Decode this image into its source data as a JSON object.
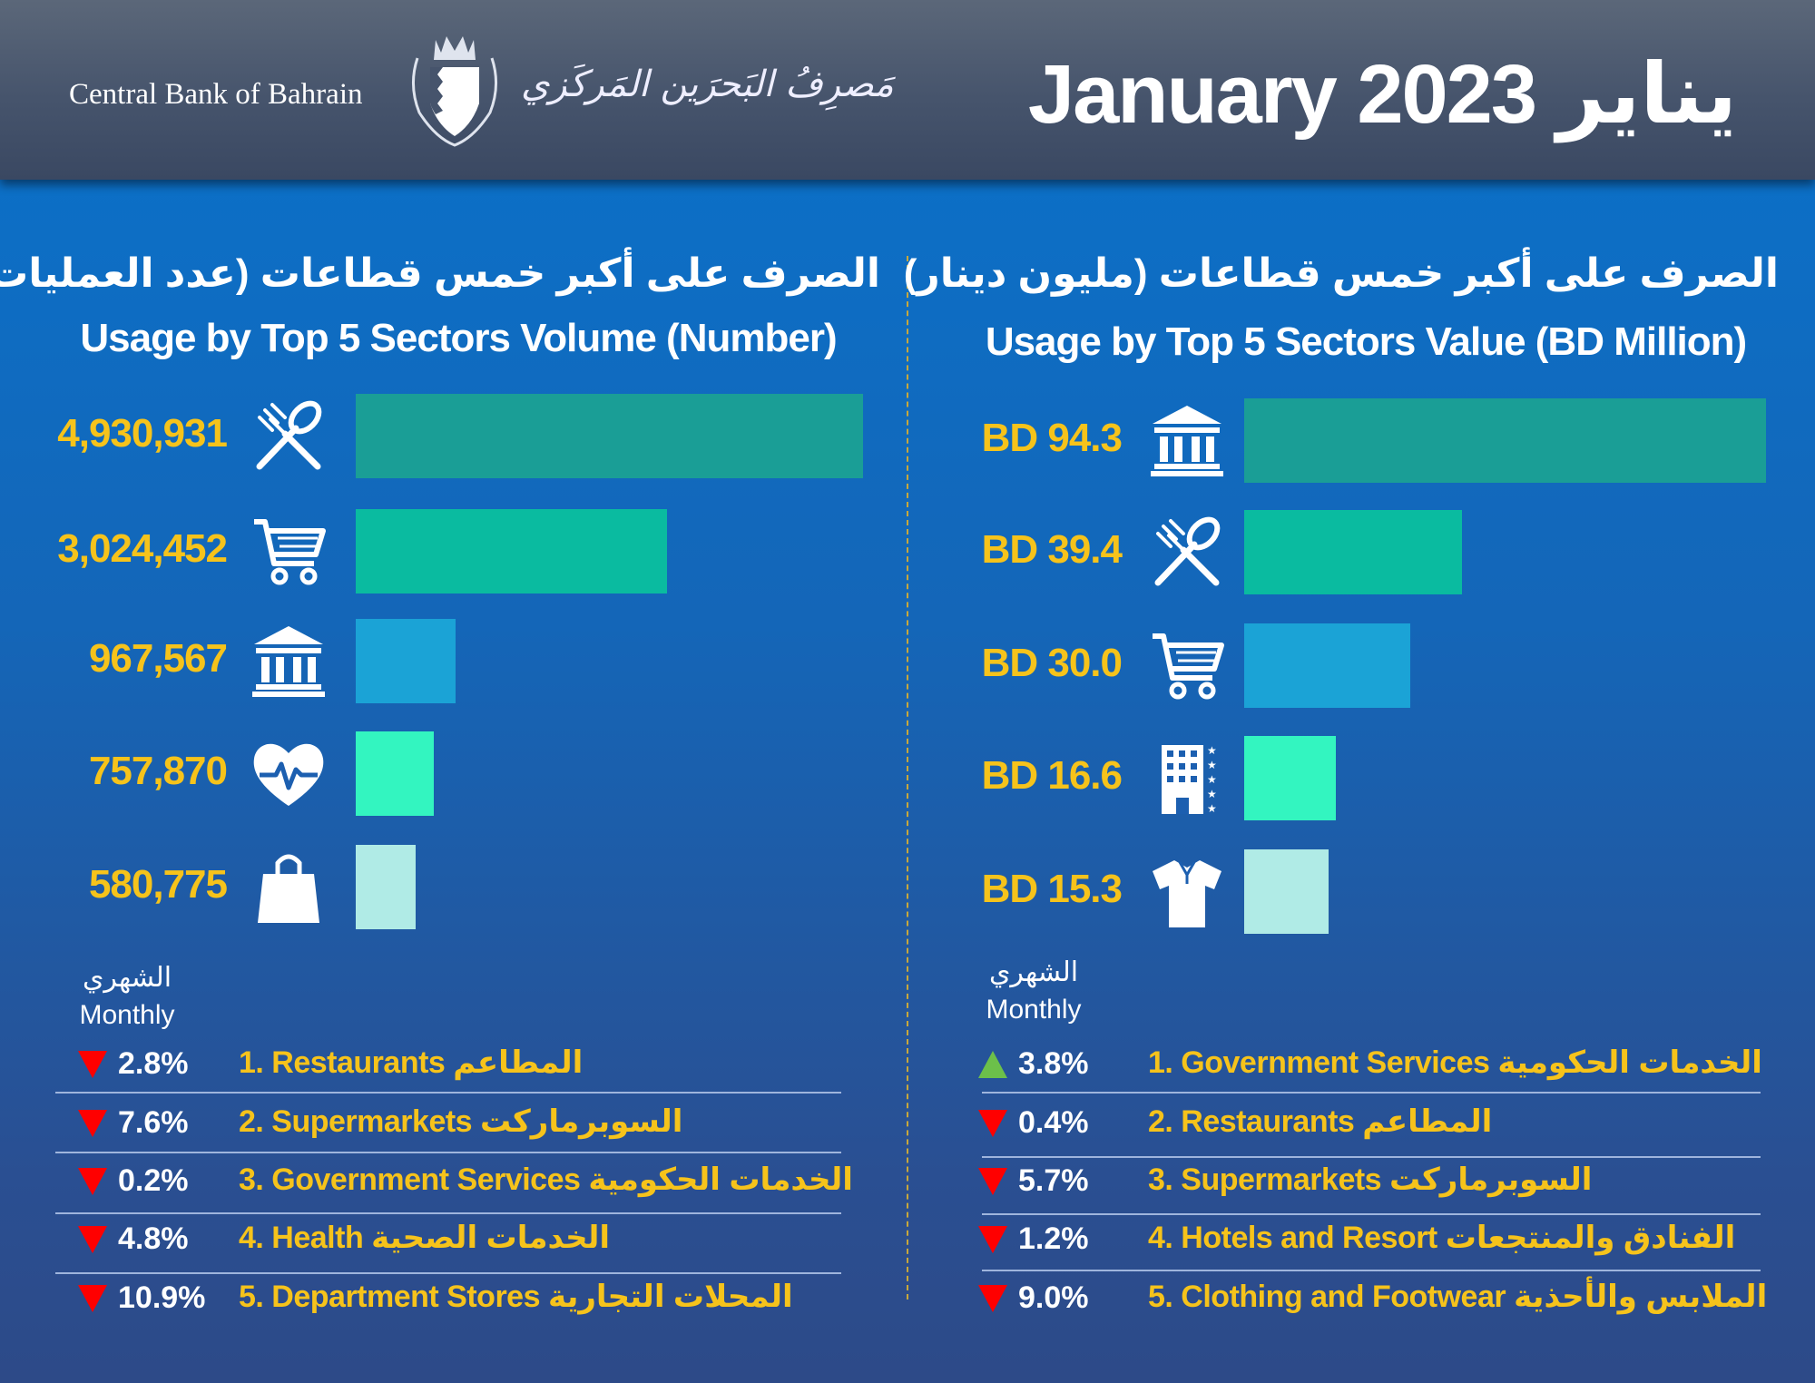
{
  "header": {
    "bank_name_en": "Central Bank of Bahrain",
    "bank_name_ar": "مَصرِفُ البَحرَين المَركَزي",
    "title": "January 2023 يناير"
  },
  "colors": {
    "gold": "#f6c31b",
    "up": "#6cc04a",
    "down": "#ff0000",
    "bar_colors": [
      "#1a9e96",
      "#0abba0",
      "#1ba3d6",
      "#33f5c0",
      "#b0ebe6"
    ]
  },
  "panels": [
    {
      "title_ar": "الصرف على أكبر خمس قطاعات (عدد العمليات)",
      "title_en": "Usage by Top 5 Sectors Volume (Number)",
      "monthly_ar": "الشهري",
      "monthly_en": "Monthly",
      "rows": [
        {
          "label": "1. Restaurants المطاعم",
          "change": "2.8%",
          "direction": "down"
        },
        {
          "label": "2. Supermarkets السوبرماركت",
          "change": "7.6%",
          "direction": "down"
        },
        {
          "label": "3. Government Services الخدمات الحكومية",
          "change": "0.2%",
          "direction": "down"
        },
        {
          "label": "4. Health الخدمات الصحية",
          "change": "4.8%",
          "direction": "down"
        },
        {
          "label": "5. Department Stores المحلات التجارية",
          "change": "10.9%",
          "direction": "down"
        }
      ]
    },
    {
      "title_ar": "الصرف على أكبر خمس قطاعات (مليون دينار)",
      "title_en": "Usage by Top 5 Sectors Value (BD Million)",
      "monthly_ar": "الشهري",
      "monthly_en": "Monthly",
      "rows": [
        {
          "label": "1. Government Services الخدمات الحكومية",
          "change": "3.8%",
          "direction": "up"
        },
        {
          "label": "2. Restaurants المطاعم",
          "change": "0.4%",
          "direction": "down"
        },
        {
          "label": "3. Supermarkets السوبرماركت",
          "change": "5.7%",
          "direction": "down"
        },
        {
          "label": "4. Hotels and Resort الفنادق والمنتجعات",
          "change": "1.2%",
          "direction": "down"
        },
        {
          "label": "5. Clothing and Footwear الملابس والأحذية",
          "change": "9.0%",
          "direction": "down"
        }
      ]
    }
  ],
  "chart_data": [
    {
      "type": "bar",
      "orientation": "horizontal",
      "title": "Usage by Top 5 Sectors Volume (Number)",
      "categories": [
        "Restaurants",
        "Supermarkets",
        "Government Services",
        "Health",
        "Department Stores"
      ],
      "values": [
        4930931,
        3024452,
        967567,
        757870,
        580775
      ],
      "value_labels": [
        "4,930,931",
        "3,024,452",
        "967,567",
        "757,870",
        "580,775"
      ],
      "icons": [
        "fork-spoon",
        "cart",
        "bank",
        "heart-pulse",
        "shopping-bag"
      ],
      "xlim": [
        0,
        4930931
      ]
    },
    {
      "type": "bar",
      "orientation": "horizontal",
      "title": "Usage by Top 5 Sectors Value (BD Million)",
      "categories": [
        "Government Services",
        "Restaurants",
        "Supermarkets",
        "Hotels and Resort",
        "Clothing and Footwear"
      ],
      "values": [
        94.3,
        39.4,
        30.0,
        16.6,
        15.3
      ],
      "value_labels": [
        "BD 94.3",
        "BD 39.4",
        "BD 30.0",
        "BD 16.6",
        "BD 15.3"
      ],
      "icons": [
        "bank",
        "fork-spoon",
        "cart",
        "hotel",
        "shirt"
      ],
      "xlim": [
        0,
        94.3
      ]
    }
  ]
}
